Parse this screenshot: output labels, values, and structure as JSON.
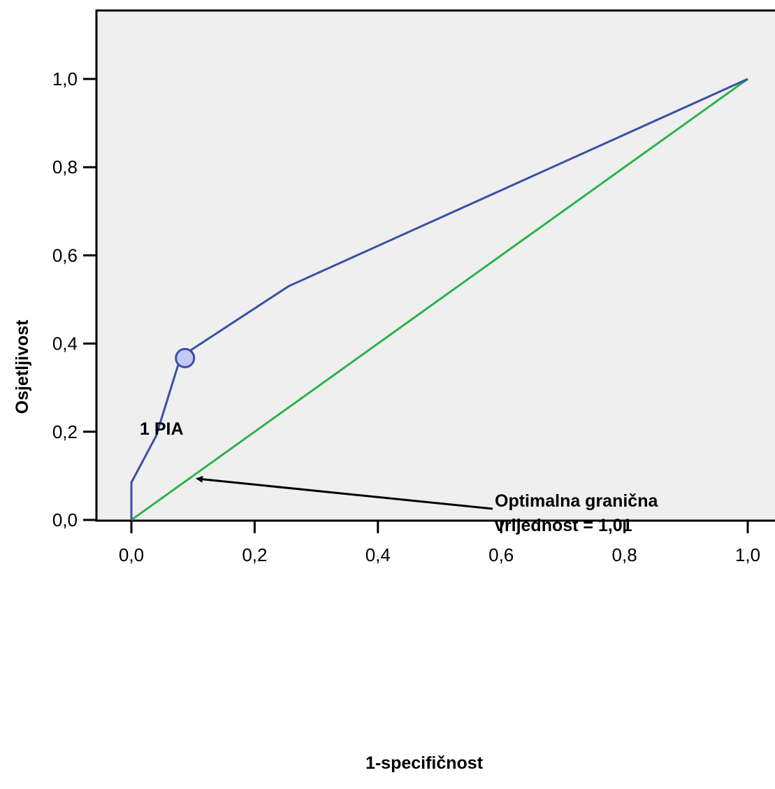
{
  "chart_data": {
    "type": "line",
    "title": "",
    "xlabel": "1-specifičnost",
    "ylabel": "Osjetljivost",
    "xlim": [
      0.0,
      1.0
    ],
    "ylim": [
      0.0,
      1.0
    ],
    "x_ticks": [
      "0,0",
      "0,2",
      "0,4",
      "0,6",
      "0,8",
      "1,0"
    ],
    "y_ticks": [
      "0,0",
      "0,2",
      "0,4",
      "0,6",
      "0,8",
      "1,0"
    ],
    "grid": false,
    "background": "#efefef",
    "series": [
      {
        "color": "#3c50a8",
        "points": [
          {
            "x": 0.0,
            "y": 0.0
          },
          {
            "x": 0.0,
            "y": 0.085
          },
          {
            "x": 0.04,
            "y": 0.19
          },
          {
            "x": 0.08,
            "y": 0.37
          },
          {
            "x": 0.255,
            "y": 0.53
          },
          {
            "x": 1.0,
            "y": 1.0
          }
        ]
      },
      {
        "color": "#2db34a",
        "points": [
          {
            "x": 0.0,
            "y": 0.0
          },
          {
            "x": 1.0,
            "y": 1.0
          }
        ]
      }
    ],
    "highlight_point": {
      "x": 0.087,
      "y": 0.367,
      "fill": "#c5c9f2",
      "stroke": "#3c50a8"
    },
    "annotations": {
      "point_label": "1 PIA",
      "cutoff_line1": "Optimalna granična",
      "cutoff_line2": "vrijednost = 1,01"
    }
  }
}
